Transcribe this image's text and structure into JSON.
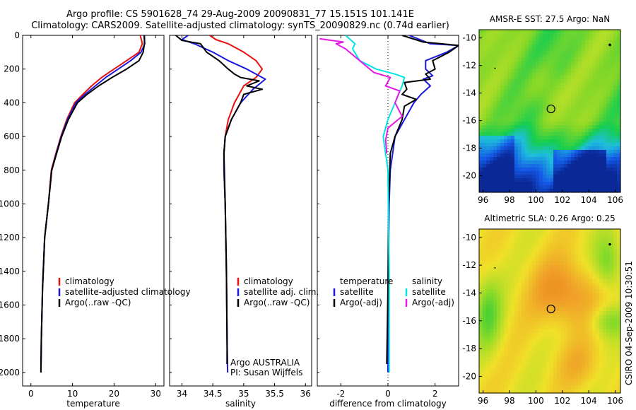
{
  "header": {
    "line1": "Argo profile: CS 5901628_74 29-Aug-2009 20090831_77 15.151S 101.141E",
    "line2": "Climatology: CARS2009. Satellite-adjusted climatology: synTS_20090829.nc (0.74d earlier)"
  },
  "footer_stamp": "CSIRO 04-Sep-2009 10:30:51",
  "colors": {
    "climatology": "#e8110b",
    "satellite": "#1a1adf",
    "argo": "#000000",
    "satellite_diff_sal": "#00e5e5",
    "argo_diff_sal": "#e619e6"
  },
  "chart_data": [
    {
      "type": "line",
      "xlabel": "temperature",
      "ylabel": "",
      "xlim": [
        -2,
        32
      ],
      "ylim": [
        0,
        2080
      ],
      "y_inverted": true,
      "xticks": [
        0,
        10,
        20,
        30
      ],
      "yticks": [
        0,
        200,
        400,
        600,
        800,
        1000,
        1200,
        1400,
        1600,
        1800,
        2000
      ],
      "legend_placement": "lower-right",
      "legend": [
        "climatology",
        "satellite-adjusted climatology",
        "Argo(..raw -QC)"
      ],
      "series": [
        {
          "name": "climatology",
          "color": "#e8110b",
          "x": [
            26.3,
            26.8,
            26.0,
            23.0,
            20.0,
            17.0,
            14.6,
            12.5,
            10.5,
            8.6,
            7.2,
            6.0,
            4.9,
            4.2,
            3.3,
            2.8,
            2.5,
            2.4
          ],
          "y": [
            0,
            50,
            100,
            150,
            200,
            250,
            300,
            350,
            400,
            500,
            600,
            700,
            800,
            1000,
            1200,
            1500,
            1800,
            2000
          ]
        },
        {
          "name": "satellite-adjusted climatology",
          "color": "#1a1adf",
          "x": [
            27.2,
            27.4,
            26.5,
            24.0,
            21.0,
            18.0,
            15.5,
            13.0,
            10.8,
            8.8,
            7.3,
            6.1,
            5.0,
            4.2,
            3.3,
            2.8,
            2.5,
            2.4
          ],
          "y": [
            0,
            50,
            100,
            150,
            200,
            250,
            300,
            350,
            400,
            500,
            600,
            700,
            800,
            1000,
            1200,
            1500,
            1800,
            2000
          ]
        },
        {
          "name": "Argo(..raw -QC)",
          "color": "#000000",
          "x": [
            27.3,
            27.3,
            27.0,
            26.0,
            23.0,
            19.5,
            16.3,
            13.5,
            11.2,
            9.0,
            7.4,
            6.2,
            5.0,
            4.2,
            3.3,
            2.8,
            2.5,
            2.4
          ],
          "y": [
            0,
            50,
            100,
            150,
            200,
            250,
            300,
            350,
            400,
            500,
            600,
            700,
            800,
            1000,
            1200,
            1500,
            1800,
            2000
          ]
        }
      ]
    },
    {
      "type": "line",
      "xlabel": "salinity",
      "ylabel": "",
      "xlim": [
        33.8,
        36.1
      ],
      "ylim": [
        0,
        2080
      ],
      "y_inverted": true,
      "xticks": [
        34,
        34.5,
        35,
        35.5,
        36
      ],
      "xtick_labels": [
        "34",
        "34.5",
        "35",
        "35.5",
        "36"
      ],
      "legend_placement": "lower-right",
      "legend": [
        "climatology",
        "satellite adj. clim.",
        "Argo(..raw -QC)"
      ],
      "annotations": [
        "Argo AUSTRALIA",
        "PI: Susan Wijffels"
      ],
      "series": [
        {
          "name": "climatology",
          "color": "#e8110b",
          "x": [
            34.45,
            34.55,
            34.75,
            35.0,
            35.2,
            35.3,
            35.2,
            35.0,
            34.85,
            34.75,
            34.7,
            34.68,
            34.68,
            34.7,
            34.72,
            34.73,
            34.74
          ],
          "y": [
            0,
            25,
            50,
            100,
            150,
            200,
            250,
            300,
            400,
            500,
            600,
            700,
            800,
            1000,
            1400,
            1800,
            2000
          ]
        },
        {
          "name": "satellite adj. clim.",
          "color": "#1a1adf",
          "x": [
            34.1,
            34.0,
            34.2,
            34.5,
            34.75,
            35.05,
            35.35,
            35.15,
            34.95,
            34.8,
            34.7,
            34.68,
            34.68,
            34.7,
            34.72,
            34.73,
            34.74
          ],
          "y": [
            0,
            25,
            50,
            100,
            150,
            200,
            260,
            320,
            400,
            500,
            600,
            700,
            800,
            1000,
            1400,
            1800,
            2000
          ]
        },
        {
          "name": "Argo(..raw -QC)",
          "color": "#000000",
          "x": [
            33.9,
            34.0,
            34.3,
            34.4,
            34.6,
            34.75,
            34.85,
            34.95,
            35.25,
            35.05,
            35.3,
            35.0,
            34.95,
            34.8,
            34.7,
            34.68,
            34.7,
            34.72,
            34.73,
            34.73
          ],
          "y": [
            0,
            30,
            50,
            100,
            150,
            200,
            230,
            250,
            270,
            300,
            320,
            350,
            400,
            500,
            600,
            700,
            1000,
            1400,
            1800,
            1950
          ]
        }
      ]
    },
    {
      "type": "line",
      "xlabel": "difference from climatology",
      "ylabel": "",
      "xlim": [
        -3,
        3
      ],
      "ylim": [
        0,
        2080
      ],
      "y_inverted": true,
      "xticks": [
        -2,
        0,
        2
      ],
      "zero_line": "dotted",
      "legend_placement": "lower-right",
      "legend": [
        "temperature",
        "satellite",
        "Argo(-adj)",
        "salinity",
        "satellite",
        "Argo(-adj)"
      ],
      "series": [
        {
          "name": "temperature satellite",
          "color": "#1a1adf",
          "x": [
            0.9,
            1.8,
            3.0,
            2.5,
            1.6,
            1.6,
            1.9,
            1.5,
            1.8,
            1.4,
            1.1,
            0.7,
            0.3,
            0.1,
            0.05,
            0.02,
            0.0
          ],
          "y": [
            0,
            50,
            60,
            100,
            150,
            200,
            240,
            260,
            300,
            350,
            400,
            500,
            600,
            800,
            1000,
            1400,
            2000
          ]
        },
        {
          "name": "temperature Argo(-adj)",
          "color": "#000000",
          "x": [
            0.6,
            1.5,
            3.0,
            2.6,
            1.9,
            2.0,
            1.6,
            1.8,
            0.7,
            0.8,
            0.6,
            1.2,
            0.7,
            0.6,
            0.3,
            0.1,
            0.03,
            0.0,
            -0.05
          ],
          "y": [
            0,
            40,
            60,
            100,
            150,
            200,
            230,
            260,
            280,
            320,
            350,
            380,
            420,
            500,
            600,
            700,
            1000,
            1500,
            1950
          ]
        },
        {
          "name": "salinity satellite",
          "color": "#00e5e5",
          "x": [
            -1.8,
            -1.4,
            -1.5,
            -1.2,
            -0.5,
            0.3,
            0.7,
            0.6,
            0.3,
            0.0,
            -0.2,
            0.0,
            0.05,
            0.05
          ],
          "y": [
            0,
            50,
            80,
            150,
            200,
            230,
            250,
            300,
            400,
            500,
            600,
            800,
            1400,
            2000
          ]
        },
        {
          "name": "salinity Argo(-adj)",
          "color": "#e619e6",
          "x": [
            -2.9,
            -1.9,
            -2.2,
            -1.8,
            -1.2,
            -0.6,
            0.1,
            -0.1,
            0.5,
            0.3,
            0.6,
            0.0,
            -0.1,
            -0.05
          ],
          "y": [
            20,
            40,
            50,
            80,
            150,
            220,
            250,
            300,
            330,
            400,
            480,
            550,
            620,
            700
          ]
        }
      ]
    },
    {
      "type": "heatmap",
      "title": "AMSR-E SST: 27.5 Argo: NaN",
      "xlim": [
        95.7,
        106.4
      ],
      "ylim": [
        -21.2,
        -9.4
      ],
      "xticks": [
        96,
        98,
        100,
        102,
        104,
        106
      ],
      "yticks": [
        -10,
        -12,
        -14,
        -16,
        -18,
        -20
      ],
      "argo_position": [
        101.14,
        -15.15
      ],
      "color_regions": "green north, yellow-green center, blue to dark blue south"
    },
    {
      "type": "heatmap",
      "title": "Altimetric SLA: 0.26 Argo: 0.25",
      "xlim": [
        95.7,
        106.4
      ],
      "ylim": [
        -21.2,
        -9.4
      ],
      "xticks": [
        96,
        98,
        100,
        102,
        104,
        106
      ],
      "yticks": [
        -10,
        -12,
        -14,
        -16,
        -18,
        -20
      ],
      "argo_position": [
        101.14,
        -15.15
      ],
      "color_regions": "green edges, yellow to orange center"
    }
  ]
}
